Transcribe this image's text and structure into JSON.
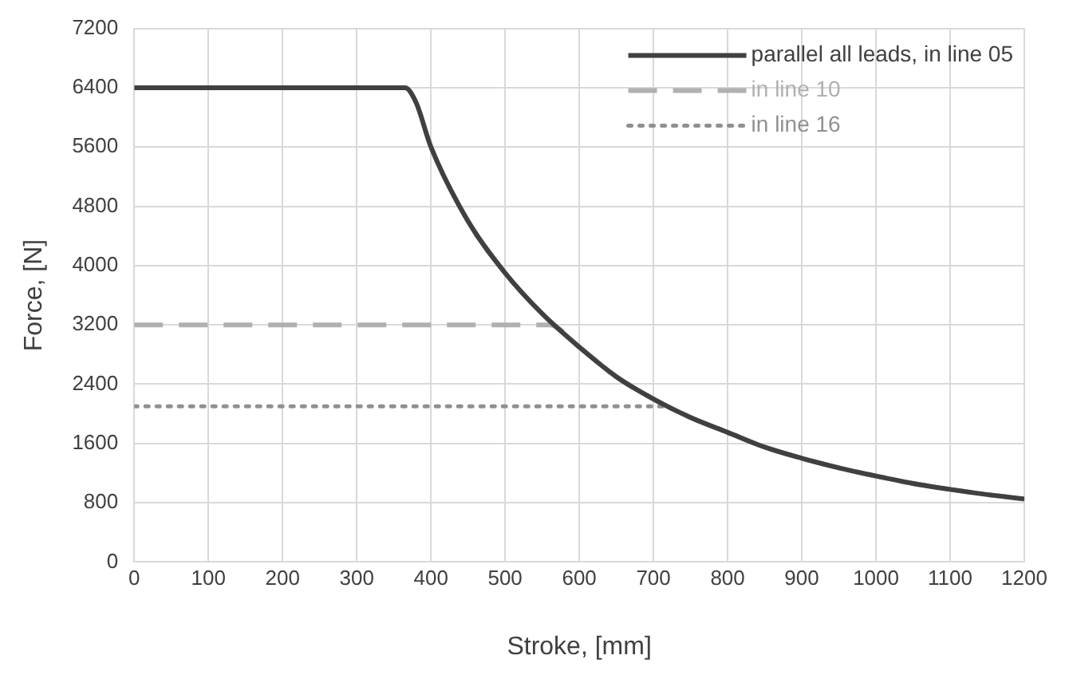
{
  "chart_data": {
    "type": "line",
    "xlabel": "Stroke, [mm]",
    "ylabel": "Force, [N]",
    "xlim": [
      0,
      1200
    ],
    "xticks": [
      0,
      100,
      200,
      300,
      400,
      500,
      600,
      700,
      800,
      900,
      1000,
      1100,
      1200
    ],
    "ylim": [
      0,
      7200
    ],
    "yticks": [
      0,
      800,
      1600,
      2400,
      3200,
      4000,
      4800,
      5600,
      6400,
      7200
    ],
    "grid": true,
    "legend": "top right",
    "marker": "none",
    "series": [
      {
        "name": "parallel all leads, in line 05",
        "color": "#404040",
        "line_style": "solid",
        "x": [
          0,
          365,
          380,
          400,
          450,
          500,
          550,
          600,
          650,
          700,
          750,
          800,
          850,
          900,
          950,
          1000,
          1050,
          1100,
          1150,
          1200
        ],
        "values": [
          6400,
          6400,
          6200,
          5600,
          4600,
          3900,
          3350,
          2900,
          2500,
          2200,
          1950,
          1750,
          1550,
          1400,
          1270,
          1160,
          1060,
          980,
          910,
          850
        ]
      },
      {
        "name": "in line 10",
        "color": "#b0b0b0",
        "line_style": "dashed",
        "x": [
          0,
          560,
          600,
          650,
          700,
          750,
          800,
          850,
          900,
          950,
          1000,
          1050,
          1100,
          1150,
          1200
        ],
        "values": [
          3200,
          3200,
          2900,
          2500,
          2200,
          1950,
          1750,
          1550,
          1400,
          1270,
          1160,
          1060,
          980,
          910,
          850
        ]
      },
      {
        "name": "in line 16",
        "color": "#909090",
        "line_style": "dotted",
        "x": [
          0,
          710,
          750,
          800,
          850,
          900,
          950,
          1000,
          1050,
          1100,
          1150,
          1200
        ],
        "values": [
          2100,
          2100,
          1950,
          1750,
          1550,
          1400,
          1270,
          1160,
          1060,
          980,
          910,
          850
        ]
      }
    ]
  }
}
